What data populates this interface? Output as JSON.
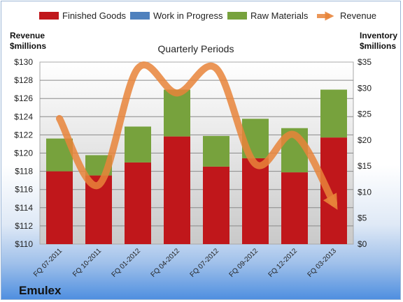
{
  "chart_data": {
    "type": "bar",
    "stacked": true,
    "title": "Quarterly Periods",
    "company": "Emulex",
    "categories": [
      "FQ 07-2011",
      "FQ 10-2011",
      "FQ 01-2012",
      "FQ 04-2012",
      "FQ 07-2012",
      "FQ 09-2012",
      "FQ 12-2012",
      "FQ 03-2013"
    ],
    "left_axis": {
      "label_line1": "Revenue",
      "label_line2": "$millions",
      "min": 110,
      "max": 130,
      "step": 2,
      "tick_labels": [
        "$110",
        "$112",
        "$114",
        "$116",
        "$118",
        "$120",
        "$122",
        "$124",
        "$126",
        "$128",
        "$130"
      ]
    },
    "right_axis": {
      "label_line1": "Inventory",
      "label_line2": "$millions",
      "min": 0,
      "max": 35,
      "step": 5,
      "tick_labels": [
        "$0",
        "$5",
        "$10",
        "$15",
        "$20",
        "$25",
        "$30",
        "$35"
      ]
    },
    "series": [
      {
        "name": "Finished Goods",
        "color": "#c0171b",
        "axis": "right",
        "values": [
          14.0,
          13.2,
          15.7,
          20.7,
          14.9,
          16.5,
          13.8,
          20.5
        ]
      },
      {
        "name": "Work in Progress",
        "color": "#4f81bd",
        "axis": "right",
        "values": [
          0,
          0,
          0,
          0,
          0,
          0,
          0,
          0
        ]
      },
      {
        "name": "Raw Materials",
        "color": "#77a23d",
        "axis": "right",
        "values": [
          6.3,
          3.9,
          6.9,
          9.0,
          5.9,
          7.6,
          8.5,
          9.2
        ]
      },
      {
        "name": "Revenue",
        "color": "#e8843a",
        "axis": "left",
        "type": "line",
        "values": [
          123.8,
          116.5,
          129.3,
          126.6,
          129.3,
          118.8,
          122.0,
          114.5
        ]
      }
    ],
    "grid": true,
    "legend_position": "top"
  }
}
